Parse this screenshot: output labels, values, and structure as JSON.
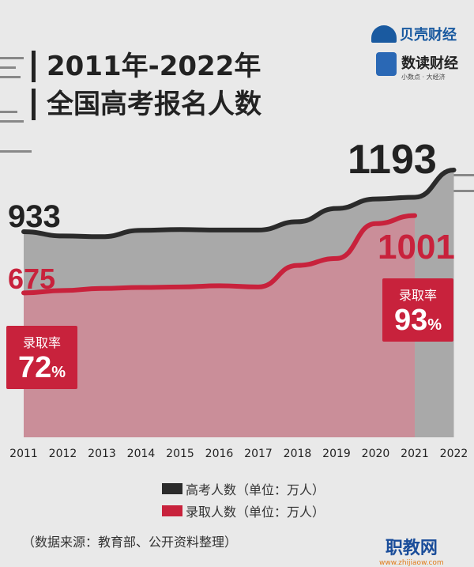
{
  "header": {
    "title_line1": "2011年-2022年",
    "title_line2": "全国高考报名人数"
  },
  "logos": {
    "beike": "贝壳财经",
    "shudu": "数读财经",
    "shudu_slogan": "小数点 · 大经济",
    "watermark": "职教网",
    "watermark_url": "www.zhijiaow.com"
  },
  "callouts": {
    "rate_label": "录取率",
    "rate_2011": "72",
    "rate_2021": "93",
    "percent": "%"
  },
  "legend": {
    "applicants": "高考人数（单位：万人）",
    "admitted": "录取人数（单位：万人）"
  },
  "source": "（数据来源：教育部、公开资料整理）",
  "colors": {
    "applicants": "#2b2b2b",
    "admitted": "#c8223c",
    "area_gray": "#a9a9a9",
    "area_red": "#d08a96"
  },
  "chart_data": {
    "type": "area",
    "x": [
      "2011",
      "2012",
      "2013",
      "2014",
      "2015",
      "2016",
      "2017",
      "2018",
      "2019",
      "2020",
      "2021",
      "2022"
    ],
    "series": [
      {
        "name": "高考人数（单位：万人）",
        "values": [
          933,
          915,
          912,
          939,
          942,
          940,
          940,
          975,
          1031,
          1071,
          1078,
          1193
        ]
      },
      {
        "name": "录取人数（单位：万人）",
        "values": [
          675,
          685,
          694,
          698,
          700,
          705,
          700,
          791,
          820,
          967,
          1001,
          null
        ]
      }
    ],
    "data_labels": {
      "applicants_2011": "933",
      "applicants_2022": "1193",
      "admitted_2011": "675",
      "admitted_2021": "1001"
    }
  }
}
